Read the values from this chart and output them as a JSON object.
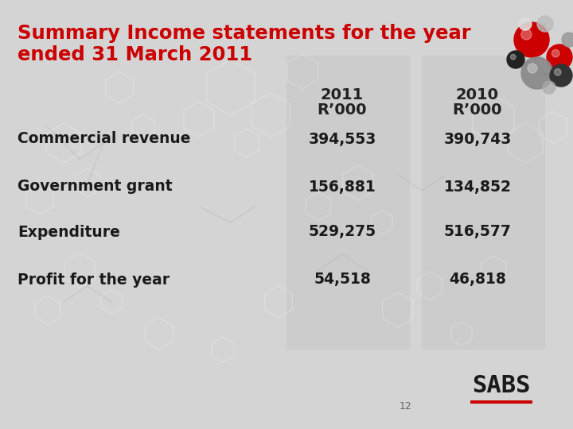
{
  "title_line1": "Summary Income statements for the year",
  "title_line2": "ended 31 March 2011",
  "title_color": "#CC0000",
  "col1_header_line1": "2011",
  "col1_header_line2": "R’000",
  "col2_header_line1": "2010",
  "col2_header_line2": "R’000",
  "rows": [
    {
      "label": "Commercial revenue",
      "val1": "394,553",
      "val2": "390,743"
    },
    {
      "label": "Government grant",
      "val1": "156,881",
      "val2": "134,852"
    },
    {
      "label": "Expenditure",
      "val1": "529,275",
      "val2": "516,577"
    },
    {
      "label": "Profit for the year",
      "val1": "54,518",
      "val2": "46,818"
    }
  ],
  "bg_color": "#d4d4d4",
  "col_band_color": "#c8c8c8",
  "text_color": "#1a1a1a",
  "header_text_color": "#222222",
  "page_number": "12",
  "logo_text": "SABS",
  "fig_width": 7.2,
  "fig_height": 5.4,
  "dpi": 100
}
